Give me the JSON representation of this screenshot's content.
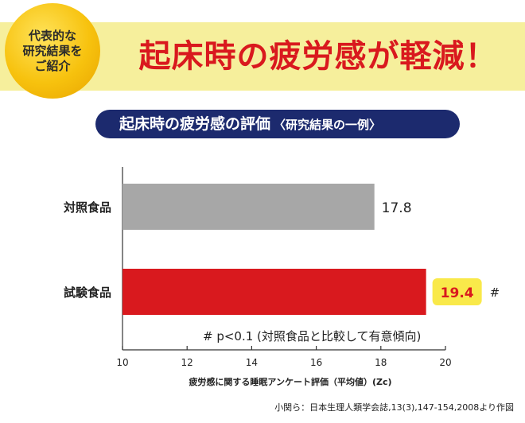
{
  "badge": {
    "line1": "代表的な",
    "line2": "研究結果を",
    "line3": "ご紹介"
  },
  "headline": "起床時の疲労感が軽減！",
  "subtitle": {
    "main": "起床時の疲労感の評価",
    "note": "〈研究結果の一例〉"
  },
  "colors": {
    "control_bar": "#a7a7a7",
    "test_bar": "#d9191e",
    "highlight_box": "#f9e94a",
    "subtitle_bg": "#1c2a6e",
    "banner_bg": "#f6ef9c",
    "headline": "#d9191e"
  },
  "chart_data": {
    "type": "bar",
    "orientation": "horizontal",
    "categories": [
      "対照食品",
      "試験食品"
    ],
    "values": [
      17.8,
      19.4
    ],
    "value_labels": [
      "17.8",
      "19.4"
    ],
    "significance_marker": "#",
    "significance_category": "試験食品",
    "xlabel": "疲労感に関する睡眠アンケート評価（平均値）(Zc)",
    "xlim": [
      10,
      20
    ],
    "xticks": [
      10,
      12,
      14,
      16,
      18,
      20
    ],
    "annotation": "# p<0.1 (対照食品と比較して有意傾向)"
  },
  "source": "小関ら：日本生理人類学会誌,13(3),147-154,2008より作図"
}
